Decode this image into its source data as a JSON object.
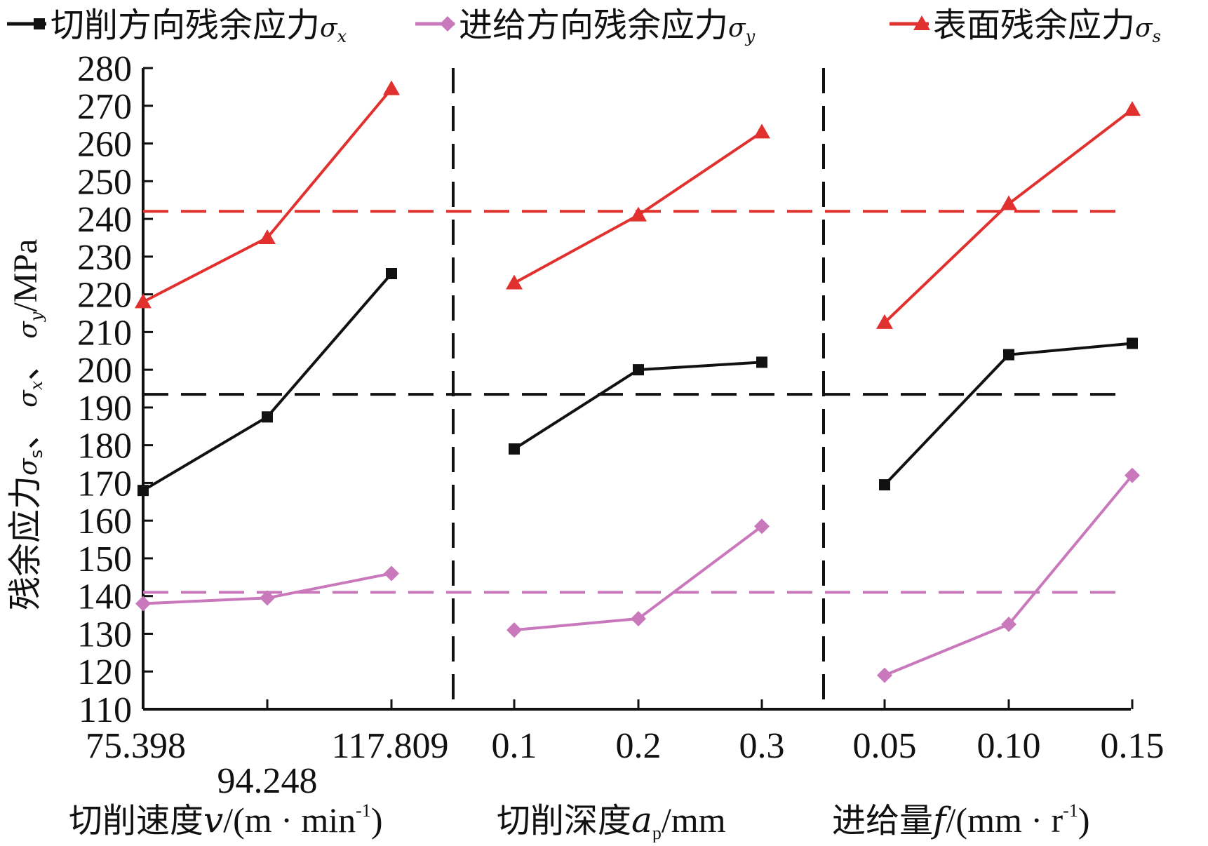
{
  "chart_data": {
    "type": "line",
    "ylabel": {
      "main": "残余应力",
      "sym_s": "σ",
      "sub_s": "s",
      "sep1": "、",
      "sym_x": "σ",
      "sub_x": "x",
      "sep2": "、",
      "sym_y": "σ",
      "sub_y": "y",
      "unit": "/MPa"
    },
    "ylim": [
      110,
      280
    ],
    "yticks": [
      "110",
      "120",
      "130",
      "140",
      "150",
      "160",
      "170",
      "180",
      "190",
      "200",
      "210",
      "220",
      "230",
      "240",
      "250",
      "260",
      "270",
      "280"
    ],
    "grid": false,
    "legend_position": "top",
    "legend": [
      {
        "series": "sigma_x",
        "label": "切削方向残余应力",
        "sym": "σ",
        "sub": "x"
      },
      {
        "series": "sigma_y",
        "label": "进给方向残余应力",
        "sym": "σ",
        "sub": "y"
      },
      {
        "series": "sigma_s",
        "label": "表面残余应力",
        "sym": "σ",
        "sub": "s"
      }
    ],
    "series_colors": {
      "sigma_x": "#111111",
      "sigma_y": "#c978bb",
      "sigma_s": "#e0312f"
    },
    "series_markers": {
      "sigma_x": "square",
      "sigma_y": "diamond",
      "sigma_s": "triangle"
    },
    "groups": [
      {
        "factor": "cutting_speed",
        "xlabel": {
          "text": "切削速度",
          "var": "v",
          "unit_pre": "/(m · min",
          "exp": "-1",
          "unit_post": ")"
        },
        "categories": [
          "75.398",
          "94.248",
          "117.809"
        ],
        "sigma_x": [
          168,
          187.5,
          225.5
        ],
        "sigma_y": [
          138,
          139.5,
          146
        ],
        "sigma_s": [
          218,
          235,
          274.5
        ]
      },
      {
        "factor": "cutting_depth",
        "xlabel": {
          "text": "切削深度",
          "var": "a",
          "sub": "p",
          "unit_pre": "/mm"
        },
        "categories": [
          "0.1",
          "0.2",
          "0.3"
        ],
        "sigma_x": [
          179,
          200,
          202
        ],
        "sigma_y": [
          131,
          134,
          158.5
        ],
        "sigma_s": [
          223,
          241,
          263
        ]
      },
      {
        "factor": "feed",
        "xlabel": {
          "text": "进给量",
          "var": "f",
          "unit_pre": "/(mm · r",
          "exp": "-1",
          "unit_post": ")"
        },
        "categories": [
          "0.05",
          "0.10",
          "0.15"
        ],
        "sigma_x": [
          169.5,
          204,
          207
        ],
        "sigma_y": [
          119,
          132.5,
          172
        ],
        "sigma_s": [
          212.5,
          244,
          269
        ]
      }
    ],
    "mean_lines": {
      "sigma_x": 193.5,
      "sigma_y": 141,
      "sigma_s": 242
    }
  }
}
